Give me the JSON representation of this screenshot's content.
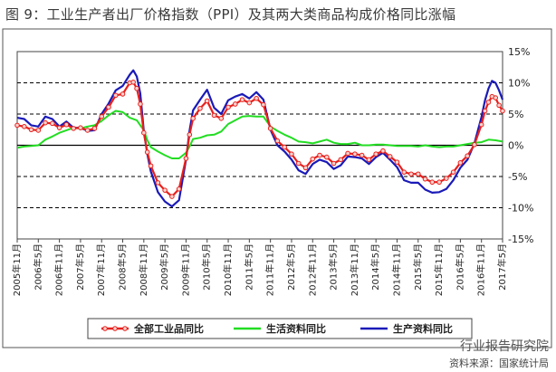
{
  "title": "图 9：工业生产者出厂价格指数（PPI）及其两大类商品构成价格同比涨幅",
  "watermark": "行业报告研究院",
  "source": "资料来源：国家统计局",
  "colors": {
    "total": "#e8201c",
    "total_marker": "#f5d2cf",
    "living": "#22dd22",
    "production": "#1a1ab8",
    "grid": "#000000",
    "frame": "#444444"
  },
  "chart_data": {
    "type": "line",
    "title": "图 9：工业生产者出厂价格指数（PPI）及其两大类商品构成价格同比涨幅",
    "ylim": [
      -15,
      15
    ],
    "yticks": [
      -15,
      -10,
      -5,
      0,
      5,
      10,
      15
    ],
    "ytick_labels": [
      "-15%",
      "-10%",
      "-5%",
      "0%",
      "5%",
      "10%",
      "15%"
    ],
    "grid": "dashed horizontal",
    "legend_position": "bottom",
    "x_start": "2005-11",
    "x_end": "2017-05",
    "xtick_labels": [
      "2005年11月",
      "2006年5月",
      "2006年11月",
      "2007年5月",
      "2007年11月",
      "2008年5月",
      "2008年11月",
      "2009年5月",
      "2009年11月",
      "2010年5月",
      "2010年11月",
      "2011年5月",
      "2011年11月",
      "2012年5月",
      "2012年11月",
      "2013年5月",
      "2013年11月",
      "2014年5月",
      "2014年11月",
      "2015年5月",
      "2015年11月",
      "2016年5月",
      "2016年11月",
      "2017年5月"
    ],
    "series": [
      {
        "name": "全部工业品同比",
        "key": "total",
        "points": [
          [
            "2005-11",
            3.2
          ],
          [
            "2006-01",
            3.0
          ],
          [
            "2006-03",
            2.5
          ],
          [
            "2006-05",
            2.4
          ],
          [
            "2006-07",
            3.6
          ],
          [
            "2006-09",
            3.5
          ],
          [
            "2006-11",
            2.8
          ],
          [
            "2007-01",
            3.3
          ],
          [
            "2007-03",
            2.7
          ],
          [
            "2007-05",
            2.8
          ],
          [
            "2007-07",
            2.4
          ],
          [
            "2007-09",
            2.7
          ],
          [
            "2007-11",
            4.6
          ],
          [
            "2008-01",
            6.1
          ],
          [
            "2008-03",
            8.0
          ],
          [
            "2008-05",
            8.2
          ],
          [
            "2008-07",
            10.0
          ],
          [
            "2008-08",
            10.1
          ],
          [
            "2008-09",
            9.1
          ],
          [
            "2008-10",
            6.6
          ],
          [
            "2008-11",
            2.0
          ],
          [
            "2008-12",
            -1.1
          ],
          [
            "2009-01",
            -3.3
          ],
          [
            "2009-03",
            -6.0
          ],
          [
            "2009-05",
            -7.2
          ],
          [
            "2009-07",
            -8.2
          ],
          [
            "2009-09",
            -7.0
          ],
          [
            "2009-11",
            -2.1
          ],
          [
            "2009-12",
            1.7
          ],
          [
            "2010-01",
            4.3
          ],
          [
            "2010-03",
            5.9
          ],
          [
            "2010-05",
            7.1
          ],
          [
            "2010-07",
            4.8
          ],
          [
            "2010-09",
            4.3
          ],
          [
            "2010-11",
            6.1
          ],
          [
            "2011-01",
            6.6
          ],
          [
            "2011-03",
            7.3
          ],
          [
            "2011-05",
            6.8
          ],
          [
            "2011-07",
            7.5
          ],
          [
            "2011-09",
            6.5
          ],
          [
            "2011-11",
            2.7
          ],
          [
            "2012-01",
            0.7
          ],
          [
            "2012-03",
            -0.3
          ],
          [
            "2012-05",
            -1.4
          ],
          [
            "2012-07",
            -2.9
          ],
          [
            "2012-09",
            -3.6
          ],
          [
            "2012-11",
            -2.2
          ],
          [
            "2013-01",
            -1.6
          ],
          [
            "2013-03",
            -1.9
          ],
          [
            "2013-05",
            -2.9
          ],
          [
            "2013-07",
            -2.3
          ],
          [
            "2013-09",
            -1.3
          ],
          [
            "2013-11",
            -1.4
          ],
          [
            "2014-01",
            -1.6
          ],
          [
            "2014-03",
            -2.3
          ],
          [
            "2014-05",
            -1.4
          ],
          [
            "2014-07",
            -0.9
          ],
          [
            "2014-09",
            -1.8
          ],
          [
            "2014-11",
            -2.7
          ],
          [
            "2015-01",
            -4.3
          ],
          [
            "2015-03",
            -4.6
          ],
          [
            "2015-05",
            -4.6
          ],
          [
            "2015-07",
            -5.4
          ],
          [
            "2015-09",
            -5.9
          ],
          [
            "2015-11",
            -5.9
          ],
          [
            "2016-01",
            -5.3
          ],
          [
            "2016-03",
            -4.3
          ],
          [
            "2016-05",
            -2.8
          ],
          [
            "2016-07",
            -1.7
          ],
          [
            "2016-09",
            0.1
          ],
          [
            "2016-11",
            3.3
          ],
          [
            "2016-12",
            5.5
          ],
          [
            "2017-01",
            6.9
          ],
          [
            "2017-02",
            7.8
          ],
          [
            "2017-03",
            7.6
          ],
          [
            "2017-04",
            6.4
          ],
          [
            "2017-05",
            5.5
          ]
        ]
      },
      {
        "name": "生活资料同比",
        "key": "living",
        "points": [
          [
            "2005-11",
            -0.4
          ],
          [
            "2006-01",
            -0.2
          ],
          [
            "2006-03",
            -0.1
          ],
          [
            "2006-05",
            0.0
          ],
          [
            "2006-07",
            0.9
          ],
          [
            "2006-09",
            1.4
          ],
          [
            "2006-11",
            2.0
          ],
          [
            "2007-01",
            2.4
          ],
          [
            "2007-03",
            2.8
          ],
          [
            "2007-05",
            2.7
          ],
          [
            "2007-07",
            3.0
          ],
          [
            "2007-09",
            3.2
          ],
          [
            "2007-11",
            3.9
          ],
          [
            "2008-01",
            4.8
          ],
          [
            "2008-03",
            5.5
          ],
          [
            "2008-05",
            5.3
          ],
          [
            "2008-07",
            4.4
          ],
          [
            "2008-09",
            4.0
          ],
          [
            "2008-11",
            2.4
          ],
          [
            "2008-12",
            0.8
          ],
          [
            "2009-01",
            -0.3
          ],
          [
            "2009-03",
            -1.0
          ],
          [
            "2009-05",
            -1.6
          ],
          [
            "2009-07",
            -2.1
          ],
          [
            "2009-09",
            -2.1
          ],
          [
            "2009-11",
            -1.2
          ],
          [
            "2009-12",
            -0.2
          ],
          [
            "2010-01",
            1.0
          ],
          [
            "2010-03",
            1.2
          ],
          [
            "2010-05",
            1.6
          ],
          [
            "2010-07",
            1.7
          ],
          [
            "2010-09",
            2.2
          ],
          [
            "2010-11",
            3.4
          ],
          [
            "2011-01",
            4.0
          ],
          [
            "2011-03",
            4.6
          ],
          [
            "2011-05",
            4.7
          ],
          [
            "2011-07",
            4.6
          ],
          [
            "2011-09",
            4.6
          ],
          [
            "2011-11",
            3.0
          ],
          [
            "2012-01",
            2.3
          ],
          [
            "2012-03",
            1.7
          ],
          [
            "2012-05",
            1.2
          ],
          [
            "2012-07",
            0.6
          ],
          [
            "2012-09",
            0.5
          ],
          [
            "2012-11",
            0.3
          ],
          [
            "2013-01",
            0.6
          ],
          [
            "2013-03",
            0.9
          ],
          [
            "2013-05",
            0.4
          ],
          [
            "2013-07",
            0.2
          ],
          [
            "2013-09",
            0.2
          ],
          [
            "2013-11",
            0.4
          ],
          [
            "2014-01",
            0.0
          ],
          [
            "2014-03",
            0.0
          ],
          [
            "2014-05",
            0.1
          ],
          [
            "2014-07",
            0.1
          ],
          [
            "2014-09",
            0.0
          ],
          [
            "2014-11",
            -0.1
          ],
          [
            "2015-01",
            -0.1
          ],
          [
            "2015-03",
            -0.1
          ],
          [
            "2015-05",
            -0.2
          ],
          [
            "2015-07",
            0.0
          ],
          [
            "2015-09",
            -0.2
          ],
          [
            "2015-11",
            -0.3
          ],
          [
            "2016-01",
            -0.2
          ],
          [
            "2016-03",
            -0.2
          ],
          [
            "2016-05",
            0.0
          ],
          [
            "2016-07",
            0.2
          ],
          [
            "2016-09",
            0.4
          ],
          [
            "2016-11",
            0.5
          ],
          [
            "2017-01",
            0.9
          ],
          [
            "2017-03",
            0.8
          ],
          [
            "2017-05",
            0.6
          ]
        ]
      },
      {
        "name": "生产资料同比",
        "key": "production",
        "points": [
          [
            "2005-11",
            4.4
          ],
          [
            "2006-01",
            4.2
          ],
          [
            "2006-03",
            3.2
          ],
          [
            "2006-05",
            3.0
          ],
          [
            "2006-07",
            4.6
          ],
          [
            "2006-09",
            4.2
          ],
          [
            "2006-11",
            3.0
          ],
          [
            "2007-01",
            3.8
          ],
          [
            "2007-03",
            2.8
          ],
          [
            "2007-05",
            2.8
          ],
          [
            "2007-07",
            2.3
          ],
          [
            "2007-09",
            2.4
          ],
          [
            "2007-11",
            5.0
          ],
          [
            "2008-01",
            6.7
          ],
          [
            "2008-03",
            8.8
          ],
          [
            "2008-05",
            9.5
          ],
          [
            "2008-07",
            11.3
          ],
          [
            "2008-08",
            12.0
          ],
          [
            "2008-09",
            11.0
          ],
          [
            "2008-10",
            8.3
          ],
          [
            "2008-11",
            2.3
          ],
          [
            "2008-12",
            -1.4
          ],
          [
            "2009-01",
            -4.2
          ],
          [
            "2009-03",
            -7.5
          ],
          [
            "2009-05",
            -9.0
          ],
          [
            "2009-07",
            -9.8
          ],
          [
            "2009-09",
            -8.8
          ],
          [
            "2009-11",
            -2.3
          ],
          [
            "2009-12",
            2.3
          ],
          [
            "2010-01",
            5.6
          ],
          [
            "2010-03",
            7.3
          ],
          [
            "2010-05",
            8.9
          ],
          [
            "2010-07",
            6.0
          ],
          [
            "2010-09",
            5.0
          ],
          [
            "2010-11",
            7.2
          ],
          [
            "2011-01",
            7.8
          ],
          [
            "2011-03",
            8.2
          ],
          [
            "2011-05",
            7.5
          ],
          [
            "2011-07",
            8.5
          ],
          [
            "2011-09",
            7.3
          ],
          [
            "2011-11",
            2.5
          ],
          [
            "2012-01",
            0.0
          ],
          [
            "2012-03",
            -1.0
          ],
          [
            "2012-05",
            -2.3
          ],
          [
            "2012-07",
            -4.0
          ],
          [
            "2012-09",
            -4.6
          ],
          [
            "2012-11",
            -3.0
          ],
          [
            "2013-01",
            -2.3
          ],
          [
            "2013-03",
            -2.7
          ],
          [
            "2013-05",
            -3.8
          ],
          [
            "2013-07",
            -3.2
          ],
          [
            "2013-09",
            -1.8
          ],
          [
            "2013-11",
            -1.9
          ],
          [
            "2014-01",
            -2.1
          ],
          [
            "2014-03",
            -3.0
          ],
          [
            "2014-05",
            -1.9
          ],
          [
            "2014-07",
            -1.2
          ],
          [
            "2014-09",
            -2.3
          ],
          [
            "2014-11",
            -3.5
          ],
          [
            "2015-01",
            -5.6
          ],
          [
            "2015-03",
            -6.0
          ],
          [
            "2015-05",
            -6.0
          ],
          [
            "2015-07",
            -7.1
          ],
          [
            "2015-09",
            -7.6
          ],
          [
            "2015-11",
            -7.5
          ],
          [
            "2016-01",
            -7.0
          ],
          [
            "2016-03",
            -5.6
          ],
          [
            "2016-05",
            -3.6
          ],
          [
            "2016-07",
            -2.3
          ],
          [
            "2016-09",
            0.3
          ],
          [
            "2016-11",
            4.5
          ],
          [
            "2016-12",
            7.2
          ],
          [
            "2017-01",
            9.1
          ],
          [
            "2017-02",
            10.3
          ],
          [
            "2017-03",
            10.0
          ],
          [
            "2017-04",
            8.8
          ],
          [
            "2017-05",
            7.3
          ]
        ]
      }
    ]
  }
}
